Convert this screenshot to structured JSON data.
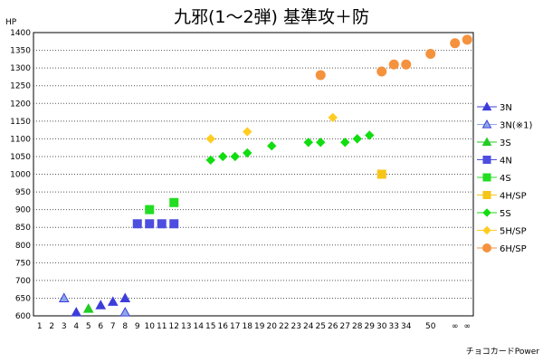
{
  "chart_data": {
    "type": "scatter",
    "title": "九邪(1～2弾) 基準攻＋防",
    "ylabel": "HP",
    "xlabel": "チョコカードPower",
    "ylim": [
      600,
      1400
    ],
    "y_ticks": [
      1400,
      1350,
      1300,
      1250,
      1200,
      1150,
      1100,
      1050,
      1000,
      950,
      900,
      850,
      800,
      750,
      700,
      650,
      600
    ],
    "categories": [
      "1",
      "2",
      "3",
      "4",
      "5",
      "6",
      "7",
      "8",
      "9",
      "10",
      "11",
      "12",
      "13",
      "14",
      "15",
      "16",
      "17",
      "18",
      "19",
      "20",
      "22",
      "23",
      "24",
      "25",
      "26",
      "27",
      "28",
      "29",
      "30",
      "33",
      "34",
      "",
      "50",
      "",
      "∞",
      "∞"
    ],
    "grid": true,
    "legend_position": "right",
    "series": [
      {
        "name": "3N",
        "marker": "triangle",
        "color": "#3d3ddb",
        "edge": "#3d3ddb",
        "points": [
          [
            4,
            610
          ],
          [
            6,
            630
          ],
          [
            7,
            640
          ],
          [
            8,
            650
          ]
        ]
      },
      {
        "name": "3N(※1)",
        "marker": "triangle",
        "color": "#8fa8e8",
        "edge": "#3d3ddb",
        "points": [
          [
            3,
            650
          ],
          [
            8,
            610
          ]
        ]
      },
      {
        "name": "3S",
        "marker": "triangle",
        "color": "#22cc22",
        "edge": "#22cc22",
        "points": [
          [
            5,
            620
          ]
        ]
      },
      {
        "name": "4N",
        "marker": "square",
        "color": "#4d4de0",
        "edge": "#4d4de0",
        "points": [
          [
            9,
            860
          ],
          [
            10,
            860
          ],
          [
            11,
            860
          ],
          [
            12,
            860
          ]
        ]
      },
      {
        "name": "4S",
        "marker": "square",
        "color": "#22dd22",
        "edge": "#22dd22",
        "points": [
          [
            10,
            900
          ],
          [
            12,
            920
          ]
        ]
      },
      {
        "name": "4H/SP",
        "marker": "square",
        "color": "#f5c518",
        "edge": "#f5c518",
        "points": [
          [
            30,
            1000
          ]
        ]
      },
      {
        "name": "5S",
        "marker": "diamond",
        "color": "#11dd11",
        "edge": "#11dd11",
        "points": [
          [
            15,
            1040
          ],
          [
            16,
            1050
          ],
          [
            17,
            1050
          ],
          [
            18,
            1060
          ],
          [
            20,
            1080
          ],
          [
            24,
            1090
          ],
          [
            25,
            1090
          ],
          [
            27,
            1090
          ],
          [
            28,
            1100
          ],
          [
            29,
            1110
          ]
        ]
      },
      {
        "name": "5H/SP",
        "marker": "diamond",
        "color": "#ffcc22",
        "edge": "#ffcc22",
        "points": [
          [
            15,
            1100
          ],
          [
            18,
            1120
          ],
          [
            26,
            1160
          ]
        ]
      },
      {
        "name": "6H/SP",
        "marker": "circle",
        "color": "#f5923e",
        "edge": "#f5923e",
        "points": [
          [
            25,
            1280
          ],
          [
            30,
            1290
          ],
          [
            33,
            1310
          ],
          [
            34,
            1310
          ],
          [
            50,
            1340
          ],
          [
            "∞a",
            1370
          ],
          [
            "∞b",
            1380
          ]
        ]
      }
    ]
  }
}
